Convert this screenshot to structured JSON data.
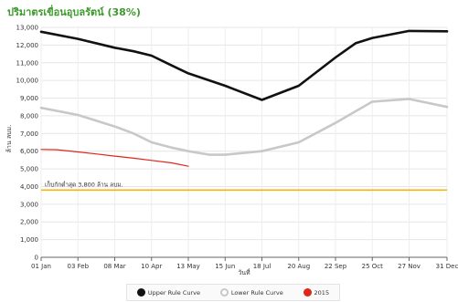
{
  "chart_data": {
    "type": "line",
    "title": "ปริมาตรเขื่อนอุบลรัตน์ (38%)",
    "xlabel": "วันที่",
    "ylabel": "ล้าน ลบม.",
    "ylim": [
      0,
      13000
    ],
    "y_ticks": [
      "0",
      "1,000",
      "2,000",
      "3,000",
      "4,000",
      "5,000",
      "6,000",
      "7,000",
      "8,000",
      "9,000",
      "10,000",
      "11,000",
      "12,000",
      "13,000"
    ],
    "x_ticks": [
      "01 Jan",
      "03 Feb",
      "08 Mar",
      "10 Apr",
      "13 May",
      "15 Jun",
      "18 Jul",
      "20 Aug",
      "22 Sep",
      "25 Oct",
      "27 Nov",
      "31 Dec"
    ],
    "grid": true,
    "legend_position": "bottom",
    "series": [
      {
        "name": "Upper Rule Curve",
        "color": "#111111",
        "x": [
          "01 Jan",
          "03 Feb",
          "08 Mar",
          "25 Mar",
          "10 Apr",
          "28 Apr",
          "13 May",
          "15 Jun",
          "18 Jul",
          "20 Aug",
          "22 Sep",
          "10 Oct",
          "25 Oct",
          "27 Nov",
          "31 Dec"
        ],
        "values": [
          12750,
          12350,
          11850,
          11650,
          11400,
          10850,
          10400,
          9700,
          8900,
          9700,
          11300,
          12100,
          12400,
          12800,
          12780
        ]
      },
      {
        "name": "Lower Rule Curve",
        "color": "#c8c8c8",
        "x": [
          "01 Jan",
          "03 Feb",
          "08 Mar",
          "25 Mar",
          "10 Apr",
          "28 Apr",
          "13 May",
          "01 Jun",
          "15 Jun",
          "18 Jul",
          "20 Aug",
          "22 Sep",
          "25 Oct",
          "27 Nov",
          "31 Dec"
        ],
        "values": [
          8450,
          8050,
          7400,
          7000,
          6500,
          6200,
          6000,
          5800,
          5800,
          6000,
          6500,
          7600,
          8800,
          8950,
          8500
        ]
      },
      {
        "name": "2015",
        "color": "#e0251b",
        "x": [
          "01 Jan",
          "15 Jan",
          "03 Feb",
          "20 Feb",
          "08 Mar",
          "25 Mar",
          "10 Apr",
          "28 Apr",
          "13 May"
        ],
        "values": [
          6100,
          6080,
          5960,
          5840,
          5720,
          5600,
          5480,
          5340,
          5150
        ]
      }
    ],
    "reference_line": {
      "label": "เก็บกักต่ำสุด 3,800 ล้าน ลบม.",
      "value": 3800,
      "color": "#f3b60e"
    }
  }
}
